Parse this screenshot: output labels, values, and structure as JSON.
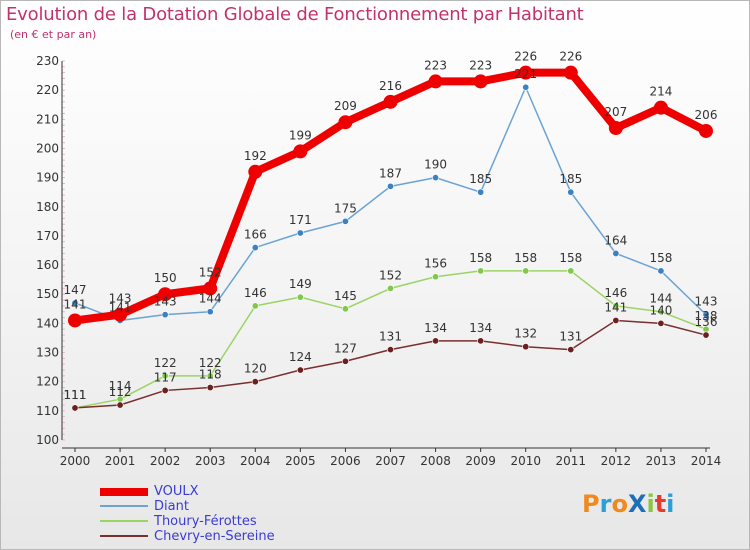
{
  "title": "Evolution de la Dotation Globale de Fonctionnement par Habitant",
  "subtitle": "(en € et par an)",
  "brand": {
    "text": "ProXiti",
    "colors": [
      "#f08a1e",
      "#29a0d8",
      "#f08a1e",
      "#1f6fb8",
      "#8cc63f",
      "#e53b2e",
      "#29a0d8"
    ]
  },
  "colors": {
    "title": "#c2326e",
    "axis": "#333333",
    "grid": "#e8b6cc",
    "value_label": "#333333"
  },
  "chart_data": {
    "type": "line",
    "title": "Evolution de la Dotation Globale de Fonctionnement par Habitant",
    "subtitle": "(en € et par an)",
    "xlabel": "",
    "ylabel": "",
    "x": [
      "2000",
      "2001",
      "2002",
      "2003",
      "2004",
      "2005",
      "2006",
      "2007",
      "2008",
      "2009",
      "2010",
      "2011",
      "2012",
      "2013",
      "2014"
    ],
    "ylim": [
      100,
      230
    ],
    "yticks": [
      100,
      110,
      120,
      130,
      140,
      150,
      160,
      170,
      180,
      190,
      200,
      210,
      220,
      230
    ],
    "grid": "dotted y-axis minor ticks",
    "legend_position": "bottom-left",
    "series": [
      {
        "name": "VOULX",
        "color": "#ee0000",
        "marker_color": "#ee0000",
        "emphasis": true,
        "values": [
          141,
          143,
          150,
          152,
          192,
          199,
          209,
          216,
          223,
          223,
          226,
          226,
          207,
          214,
          206
        ],
        "labels": [
          "141",
          "143",
          "150",
          "152",
          "192",
          "199",
          "209",
          "216",
          "223",
          "223",
          "226",
          "226",
          "207",
          "214",
          "206"
        ]
      },
      {
        "name": "Diant",
        "color": "#6aa3d4",
        "marker_color": "#3b82c4",
        "emphasis": false,
        "values": [
          147,
          141,
          143,
          144,
          166,
          171,
          175,
          187,
          190,
          185,
          221,
          185,
          164,
          158,
          143
        ],
        "labels": [
          "147",
          "141",
          "143",
          "144",
          "166",
          "171",
          "175",
          "187",
          "190",
          "185",
          "221",
          "185",
          "164",
          "158",
          "143"
        ]
      },
      {
        "name": "Thoury-Férottes",
        "color": "#9ad465",
        "marker_color": "#80c84a",
        "emphasis": false,
        "values": [
          111,
          114,
          122,
          122,
          146,
          149,
          145,
          152,
          156,
          158,
          158,
          158,
          146,
          144,
          138
        ],
        "labels": [
          "111",
          "114",
          "122",
          "122",
          "146",
          "149",
          "145",
          "152",
          "156",
          "158",
          "158",
          "158",
          "146",
          "144",
          "138"
        ]
      },
      {
        "name": "Chevry-en-Sereine",
        "color": "#7a2e2e",
        "marker_color": "#6b1f1f",
        "emphasis": false,
        "values": [
          111,
          112,
          117,
          118,
          120,
          124,
          127,
          131,
          134,
          134,
          132,
          131,
          141,
          140,
          136
        ],
        "labels": [
          "111",
          "112",
          "117",
          "118",
          "120",
          "124",
          "127",
          "131",
          "134",
          "134",
          "132",
          "131",
          "141",
          "140",
          "136"
        ]
      }
    ]
  }
}
